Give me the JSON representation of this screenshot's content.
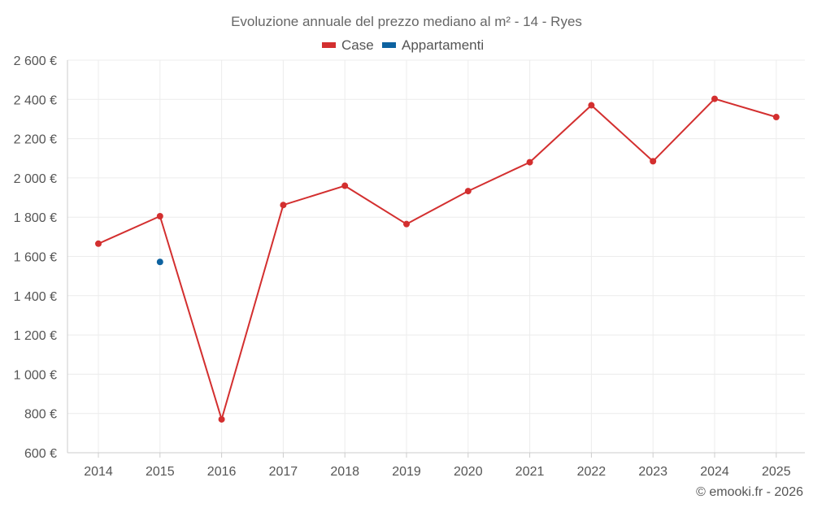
{
  "chart_data": {
    "type": "line",
    "title": "Evoluzione annuale del prezzo mediano al m² - 14 - Ryes",
    "x": [
      "2014",
      "2015",
      "2016",
      "2017",
      "2018",
      "2019",
      "2020",
      "2021",
      "2022",
      "2023",
      "2024",
      "2025"
    ],
    "ylim": [
      600,
      2600
    ],
    "ytick_values": [
      600,
      800,
      1000,
      1200,
      1400,
      1600,
      1800,
      2000,
      2200,
      2400,
      2600
    ],
    "ytick_labels": [
      "600 €",
      "800 €",
      "1 000 €",
      "1 200 €",
      "1 400 €",
      "1 600 €",
      "1 800 €",
      "2 000 €",
      "2 200 €",
      "2 400 €",
      "2 600 €"
    ],
    "grid": true,
    "legend_position": "top-center",
    "series": [
      {
        "name": "Case",
        "color": "#d32f2f",
        "values": [
          1665,
          1805,
          770,
          1862,
          1960,
          1765,
          1933,
          2080,
          2370,
          2085,
          2403,
          2310
        ]
      },
      {
        "name": "Appartamenti",
        "color": "#0d62a0",
        "values": [
          null,
          1572,
          null,
          null,
          null,
          null,
          null,
          null,
          null,
          null,
          null,
          null
        ]
      }
    ],
    "credit": "© emooki.fr - 2026"
  }
}
